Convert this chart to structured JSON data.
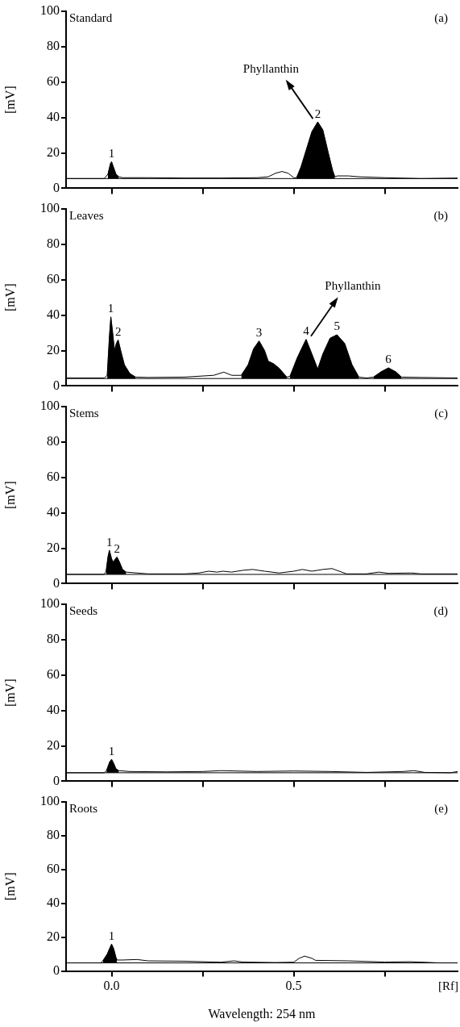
{
  "chart_data": [
    {
      "type": "line",
      "title": "Standard",
      "subtitle": "(a)",
      "ylabel": "[mV]",
      "xlim": [
        -0.125,
        0.95
      ],
      "ylim": [
        0,
        100
      ],
      "xticks": [
        {
          "value": 0,
          "label": null
        },
        {
          "value": 0.25,
          "label": null
        },
        {
          "value": 0.5,
          "label": null
        },
        {
          "value": 0.75,
          "label": null
        }
      ],
      "yticks": [
        0,
        20,
        40,
        60,
        80,
        100
      ],
      "tick_labels": "y",
      "grid": false,
      "legend": false,
      "ref_lines": [
        {
          "axis": "y",
          "value": 5.5,
          "color": "#000000"
        }
      ],
      "annotations": [
        {
          "text": "1",
          "x": 0.0,
          "y": 15
        },
        {
          "text": "2",
          "x": 0.566,
          "y": 37.5
        },
        {
          "text": "Phyllanthin",
          "x": 0.566,
          "y": 37.5
        }
      ],
      "series": [
        {
          "color": "#000000",
          "x": [
            -0.125,
            -0.02,
            -0.01,
            -0.003,
            0.0,
            0.005,
            0.012,
            0.02,
            0.03,
            0.1,
            0.2,
            0.3,
            0.4,
            0.43,
            0.45,
            0.468,
            0.485,
            0.5,
            0.508,
            0.52,
            0.535,
            0.55,
            0.566,
            0.58,
            0.595,
            0.607,
            0.613,
            0.62,
            0.65,
            0.68,
            0.75,
            0.85,
            0.95
          ],
          "values": [
            5.5,
            5.5,
            8,
            14,
            15,
            12,
            8,
            6.5,
            6,
            6,
            5.8,
            5.8,
            6,
            6.5,
            8.5,
            9.5,
            8.5,
            6,
            6,
            12,
            22,
            32,
            37.5,
            33,
            20,
            10,
            6.5,
            7,
            7,
            6.5,
            6,
            5.5,
            5.8
          ]
        },
        {
          "type": "area",
          "color": "#000000",
          "x": [
            -0.01,
            -0.003,
            0.0,
            0.005,
            0.012,
            0.02
          ],
          "values": [
            8,
            14,
            15,
            12,
            8,
            6.5
          ]
        },
        {
          "type": "area",
          "color": "#000000",
          "x": [
            0.508,
            0.52,
            0.535,
            0.55,
            0.566,
            0.58,
            0.595,
            0.607,
            0.613
          ],
          "values": [
            6,
            12,
            22,
            32,
            37.5,
            33,
            20,
            10,
            6.5
          ]
        }
      ]
    },
    {
      "type": "line",
      "title": "Leaves",
      "subtitle": "(b)",
      "ylabel": "[mV]",
      "xlim": [
        -0.125,
        0.95
      ],
      "ylim": [
        0,
        100
      ],
      "xticks": [
        {
          "value": 0,
          "label": null
        },
        {
          "value": 0.25,
          "label": null
        },
        {
          "value": 0.5,
          "label": null
        },
        {
          "value": 0.75,
          "label": null
        }
      ],
      "yticks": [
        0,
        20,
        40,
        60,
        80,
        100
      ],
      "tick_labels": "y",
      "grid": false,
      "legend": false,
      "ref_lines": [
        {
          "axis": "y",
          "value": 4.2,
          "color": "#000000"
        }
      ],
      "annotations": [
        {
          "text": "1",
          "x": -0.002,
          "y": 39
        },
        {
          "text": "2",
          "x": 0.018,
          "y": 26
        },
        {
          "text": "3",
          "x": 0.405,
          "y": 25.4
        },
        {
          "text": "4",
          "x": 0.534,
          "y": 26.3
        },
        {
          "text": "5",
          "x": 0.619,
          "y": 28.9
        },
        {
          "text": "6",
          "x": 0.76,
          "y": 10.2
        },
        {
          "text": "Phyllanthin",
          "x": 0.534,
          "y": 26.3
        }
      ],
      "series": [
        {
          "color": "#000000",
          "x": [
            -0.125,
            -0.02,
            -0.012,
            -0.006,
            -0.002,
            0.003,
            0.008,
            0.013,
            0.018,
            0.025,
            0.035,
            0.05,
            0.066,
            0.1,
            0.2,
            0.28,
            0.308,
            0.33,
            0.356,
            0.375,
            0.39,
            0.405,
            0.42,
            0.43,
            0.445,
            0.46,
            0.481,
            0.49,
            0.51,
            0.534,
            0.55,
            0.566,
            0.58,
            0.6,
            0.619,
            0.64,
            0.66,
            0.679,
            0.7,
            0.719,
            0.74,
            0.76,
            0.78,
            0.796,
            0.85,
            0.95
          ],
          "values": [
            4.5,
            4.5,
            6,
            28,
            39,
            30,
            20,
            24,
            26,
            20,
            12,
            7,
            5,
            4.8,
            5,
            6,
            7.8,
            6,
            6,
            12,
            21,
            25.4,
            20,
            14,
            12.5,
            10,
            5,
            5.5,
            16,
            26.3,
            18,
            9.5,
            18,
            27,
            28.9,
            24,
            12,
            5,
            4.5,
            5,
            8,
            10.2,
            8,
            5,
            4.8,
            4.5
          ]
        },
        {
          "type": "area",
          "color": "#000000",
          "x": [
            -0.012,
            -0.006,
            -0.002,
            0.003,
            0.008,
            0.013,
            0.018,
            0.025,
            0.035,
            0.05,
            0.066
          ],
          "values": [
            6,
            28,
            39,
            30,
            20,
            24,
            26,
            20,
            12,
            7,
            5
          ]
        },
        {
          "type": "area",
          "color": "#000000",
          "x": [
            0.356,
            0.375,
            0.39,
            0.405,
            0.42,
            0.43,
            0.445,
            0.46,
            0.481
          ],
          "values": [
            6,
            12,
            21,
            25.4,
            20,
            14,
            12.5,
            10,
            5
          ]
        },
        {
          "type": "area",
          "color": "#000000",
          "x": [
            0.49,
            0.51,
            0.534,
            0.55,
            0.566,
            0.58,
            0.6,
            0.619,
            0.64,
            0.66,
            0.679
          ],
          "values": [
            5.5,
            16,
            26.3,
            18,
            9.5,
            18,
            27,
            28.9,
            24,
            12,
            5
          ]
        },
        {
          "type": "area",
          "color": "#000000",
          "x": [
            0.719,
            0.74,
            0.76,
            0.78,
            0.796
          ],
          "values": [
            5,
            8,
            10.2,
            8,
            5
          ]
        }
      ]
    },
    {
      "type": "line",
      "title": "Stems",
      "subtitle": "(c)",
      "ylabel": "[mV]",
      "xlim": [
        -0.125,
        0.95
      ],
      "ylim": [
        0,
        100
      ],
      "xticks": [
        {
          "value": 0,
          "label": null
        },
        {
          "value": 0.25,
          "label": null
        },
        {
          "value": 0.5,
          "label": null
        },
        {
          "value": 0.75,
          "label": null
        }
      ],
      "yticks": [
        0,
        20,
        40,
        60,
        80,
        100
      ],
      "tick_labels": "y",
      "grid": false,
      "legend": false,
      "ref_lines": [
        {
          "axis": "y",
          "value": 5.2,
          "color": "#000000"
        }
      ],
      "annotations": [
        {
          "text": "1",
          "x": -0.006,
          "y": 18.8
        },
        {
          "text": "2",
          "x": 0.015,
          "y": 15
        }
      ],
      "series": [
        {
          "color": "#000000",
          "x": [
            -0.125,
            -0.02,
            -0.015,
            -0.01,
            -0.006,
            0.0,
            0.005,
            0.01,
            0.015,
            0.022,
            0.03,
            0.04,
            0.07,
            0.1,
            0.2,
            0.24,
            0.266,
            0.29,
            0.306,
            0.33,
            0.36,
            0.387,
            0.42,
            0.46,
            0.5,
            0.524,
            0.55,
            0.58,
            0.605,
            0.625,
            0.645,
            0.7,
            0.734,
            0.76,
            0.823,
            0.85,
            0.95
          ],
          "values": [
            5.2,
            5.2,
            7,
            15,
            18.8,
            14,
            12,
            14,
            15,
            12,
            8,
            6.5,
            6,
            5.5,
            5.5,
            6,
            7,
            6.5,
            7,
            6.5,
            7.5,
            8,
            7,
            6,
            7,
            8,
            7,
            8,
            8.5,
            7,
            5.5,
            5.5,
            6.5,
            5.8,
            6,
            5.5,
            5.5
          ]
        },
        {
          "type": "area",
          "color": "#000000",
          "x": [
            -0.015,
            -0.01,
            -0.006,
            0.0,
            0.005,
            0.01,
            0.015,
            0.022,
            0.03,
            0.04
          ],
          "values": [
            7,
            15,
            18.8,
            14,
            12,
            14,
            15,
            12,
            8,
            6.5
          ]
        }
      ]
    },
    {
      "type": "line",
      "title": "Seeds",
      "subtitle": "(d)",
      "ylabel": "[mV]",
      "xlim": [
        -0.125,
        0.95
      ],
      "ylim": [
        0,
        100
      ],
      "xticks": [
        {
          "value": 0,
          "label": null
        },
        {
          "value": 0.25,
          "label": null
        },
        {
          "value": 0.5,
          "label": null
        },
        {
          "value": 0.75,
          "label": null
        }
      ],
      "yticks": [
        0,
        20,
        40,
        60,
        80,
        100
      ],
      "tick_labels": "y",
      "grid": false,
      "legend": false,
      "ref_lines": [
        {
          "axis": "y",
          "value": 4.8,
          "color": "#000000"
        }
      ],
      "annotations": [
        {
          "text": "1",
          "x": 0.0,
          "y": 12.4
        }
      ],
      "series": [
        {
          "color": "#000000",
          "x": [
            -0.125,
            -0.02,
            -0.014,
            -0.005,
            0.0,
            0.006,
            0.012,
            0.02,
            0.05,
            0.15,
            0.25,
            0.3,
            0.4,
            0.5,
            0.6,
            0.7,
            0.8,
            0.83,
            0.86,
            0.93,
            0.95
          ],
          "values": [
            4.8,
            4.8,
            6,
            11,
            12.4,
            10,
            7,
            6,
            5.5,
            5.3,
            5.5,
            6,
            5.5,
            5.8,
            5.5,
            5,
            5.5,
            6,
            5,
            4.8,
            5.5
          ]
        },
        {
          "type": "area",
          "color": "#000000",
          "x": [
            -0.014,
            -0.005,
            0.0,
            0.006,
            0.012,
            0.02
          ],
          "values": [
            6,
            11,
            12.4,
            10,
            7,
            6
          ]
        }
      ]
    },
    {
      "type": "line",
      "title": "Roots",
      "subtitle": "(e)",
      "xlabel": "Wavelength: 254 nm",
      "ylabel": "[mV]",
      "xlim": [
        -0.125,
        0.95
      ],
      "ylim": [
        0,
        100
      ],
      "xticks": [
        {
          "value": 0,
          "label": "0.0"
        },
        {
          "value": 0.25,
          "label": null
        },
        {
          "value": 0.5,
          "label": "0.5"
        },
        {
          "value": 0.75,
          "label": null
        }
      ],
      "yticks": [
        0,
        20,
        40,
        60,
        80,
        100
      ],
      "grid": false,
      "legend": false,
      "ref_lines": [
        {
          "axis": "y",
          "value": 4.8,
          "color": "#000000"
        }
      ],
      "annotations": [
        {
          "text": "1",
          "x": 0.0,
          "y": 15.9
        },
        "[Rf]"
      ],
      "series": [
        {
          "color": "#000000",
          "x": [
            -0.125,
            -0.03,
            -0.024,
            -0.012,
            -0.004,
            0.0,
            0.006,
            0.012,
            0.015,
            0.03,
            0.07,
            0.1,
            0.2,
            0.3,
            0.336,
            0.36,
            0.45,
            0.5,
            0.515,
            0.53,
            0.55,
            0.56,
            0.65,
            0.75,
            0.82,
            0.9,
            0.95
          ],
          "values": [
            4.8,
            4.8,
            6,
            10,
            14,
            15.9,
            13,
            8,
            6.5,
            6.5,
            6.8,
            6,
            5.8,
            5.2,
            6,
            5.3,
            5,
            5.2,
            7.5,
            8.8,
            7.5,
            6.3,
            6,
            5.3,
            5.5,
            4.8,
            4.8
          ]
        },
        {
          "type": "area",
          "color": "#000000",
          "x": [
            -0.024,
            -0.012,
            -0.004,
            0.0,
            0.006,
            0.012,
            0.015
          ],
          "values": [
            6,
            10,
            14,
            15.9,
            13,
            8,
            6.5
          ]
        }
      ]
    }
  ]
}
